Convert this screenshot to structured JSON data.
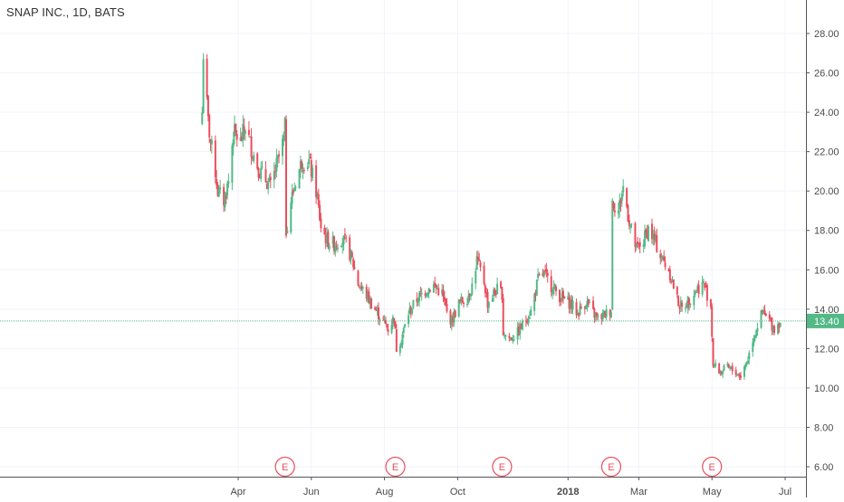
{
  "header": {
    "title": "SNAP INC., 1D, BATS"
  },
  "colors": {
    "up": "#53b987",
    "down": "#eb4d5c",
    "grid": "#f0f3fa",
    "price_line": "#53b987",
    "earnings": "#eb4d5c"
  },
  "chart_data": {
    "type": "candlestick",
    "title": "SNAP INC., 1D, BATS",
    "ylim": [
      5.6,
      29.6
    ],
    "y_ticks": [
      "6.00",
      "8.00",
      "10.00",
      "12.00",
      "14.00",
      "16.00",
      "18.00",
      "20.00",
      "22.00",
      "24.00",
      "26.00",
      "28.00"
    ],
    "x_ticks": [
      {
        "label": "Apr",
        "date": "2017-04-01"
      },
      {
        "label": "Jun",
        "date": "2017-06-01"
      },
      {
        "label": "Aug",
        "date": "2017-08-01"
      },
      {
        "label": "Oct",
        "date": "2017-10-01"
      },
      {
        "label": "2018",
        "date": "2018-01-01",
        "bold": true
      },
      {
        "label": "Mar",
        "date": "2018-03-01"
      },
      {
        "label": "May",
        "date": "2018-05-01"
      },
      {
        "label": "Jul",
        "date": "2018-07-01"
      }
    ],
    "last_price": {
      "label": "13.40",
      "value": 13.4
    },
    "earnings_markers": [
      {
        "label": "E",
        "date": "2017-05-10"
      },
      {
        "label": "E",
        "date": "2017-08-10"
      },
      {
        "label": "E",
        "date": "2017-11-07"
      },
      {
        "label": "E",
        "date": "2018-02-06"
      },
      {
        "label": "E",
        "date": "2018-05-01"
      }
    ],
    "close_path": [
      [
        "2017-03-02",
        24.0
      ],
      [
        "2017-03-03",
        27.0
      ],
      [
        "2017-03-07",
        23.5
      ],
      [
        "2017-03-09",
        22.5
      ],
      [
        "2017-03-13",
        21.0
      ],
      [
        "2017-03-15",
        20.0
      ],
      [
        "2017-03-20",
        19.5
      ],
      [
        "2017-03-24",
        20.5
      ],
      [
        "2017-03-28",
        23.0
      ],
      [
        "2017-04-03",
        22.5
      ],
      [
        "2017-04-07",
        23.3
      ],
      [
        "2017-04-13",
        22.0
      ],
      [
        "2017-04-19",
        21.0
      ],
      [
        "2017-04-25",
        20.5
      ],
      [
        "2017-04-28",
        20.2
      ],
      [
        "2017-05-04",
        21.5
      ],
      [
        "2017-05-09",
        22.6
      ],
      [
        "2017-05-10",
        23.2
      ],
      [
        "2017-05-11",
        18.0
      ],
      [
        "2017-05-15",
        19.5
      ],
      [
        "2017-05-19",
        20.5
      ],
      [
        "2017-05-24",
        21.5
      ],
      [
        "2017-05-30",
        21.5
      ],
      [
        "2017-06-05",
        20.0
      ],
      [
        "2017-06-09",
        18.2
      ],
      [
        "2017-06-14",
        17.5
      ],
      [
        "2017-06-20",
        17.3
      ],
      [
        "2017-06-26",
        17.6
      ],
      [
        "2017-06-30",
        17.3
      ],
      [
        "2017-07-05",
        16.5
      ],
      [
        "2017-07-10",
        15.3
      ],
      [
        "2017-07-17",
        14.7
      ],
      [
        "2017-07-24",
        14.0
      ],
      [
        "2017-07-31",
        13.4
      ],
      [
        "2017-08-04",
        13.0
      ],
      [
        "2017-08-09",
        13.6
      ],
      [
        "2017-08-11",
        12.0
      ],
      [
        "2017-08-15",
        12.5
      ],
      [
        "2017-08-21",
        13.8
      ],
      [
        "2017-08-28",
        14.5
      ],
      [
        "2017-09-05",
        15.0
      ],
      [
        "2017-09-11",
        15.2
      ],
      [
        "2017-09-18",
        14.8
      ],
      [
        "2017-09-22",
        13.8
      ],
      [
        "2017-09-26",
        13.4
      ],
      [
        "2017-10-02",
        14.3
      ],
      [
        "2017-10-09",
        14.6
      ],
      [
        "2017-10-13",
        15.2
      ],
      [
        "2017-10-17",
        16.5
      ],
      [
        "2017-10-23",
        15.4
      ],
      [
        "2017-10-26",
        14.3
      ],
      [
        "2017-10-31",
        14.8
      ],
      [
        "2017-11-03",
        15.0
      ],
      [
        "2017-11-07",
        14.8
      ],
      [
        "2017-11-08",
        12.8
      ],
      [
        "2017-11-14",
        12.5
      ],
      [
        "2017-11-20",
        12.8
      ],
      [
        "2017-11-27",
        13.5
      ],
      [
        "2017-12-01",
        13.9
      ],
      [
        "2017-12-07",
        15.5
      ],
      [
        "2017-12-12",
        15.8
      ],
      [
        "2017-12-18",
        15.2
      ],
      [
        "2017-12-26",
        14.6
      ],
      [
        "2018-01-03",
        14.3
      ],
      [
        "2018-01-09",
        13.8
      ],
      [
        "2018-01-16",
        14.4
      ],
      [
        "2018-01-22",
        13.8
      ],
      [
        "2018-01-26",
        13.5
      ],
      [
        "2018-02-02",
        13.8
      ],
      [
        "2018-02-06",
        14.0
      ],
      [
        "2018-02-07",
        19.5
      ],
      [
        "2018-02-12",
        19.0
      ],
      [
        "2018-02-16",
        20.2
      ],
      [
        "2018-02-21",
        18.5
      ],
      [
        "2018-02-27",
        17.0
      ],
      [
        "2018-03-05",
        17.5
      ],
      [
        "2018-03-09",
        18.1
      ],
      [
        "2018-03-14",
        17.5
      ],
      [
        "2018-03-20",
        16.6
      ],
      [
        "2018-03-26",
        16.0
      ],
      [
        "2018-04-02",
        14.5
      ],
      [
        "2018-04-06",
        14.0
      ],
      [
        "2018-04-12",
        14.5
      ],
      [
        "2018-04-18",
        15.0
      ],
      [
        "2018-04-24",
        15.3
      ],
      [
        "2018-04-30",
        14.2
      ],
      [
        "2018-05-02",
        11.2
      ],
      [
        "2018-05-08",
        10.8
      ],
      [
        "2018-05-14",
        11.0
      ],
      [
        "2018-05-21",
        10.8
      ],
      [
        "2018-05-25",
        10.6
      ],
      [
        "2018-05-31",
        11.5
      ],
      [
        "2018-06-04",
        12.5
      ],
      [
        "2018-06-08",
        13.2
      ],
      [
        "2018-06-12",
        13.8
      ],
      [
        "2018-06-18",
        13.4
      ],
      [
        "2018-06-22",
        13.0
      ],
      [
        "2018-06-27",
        13.4
      ]
    ]
  }
}
